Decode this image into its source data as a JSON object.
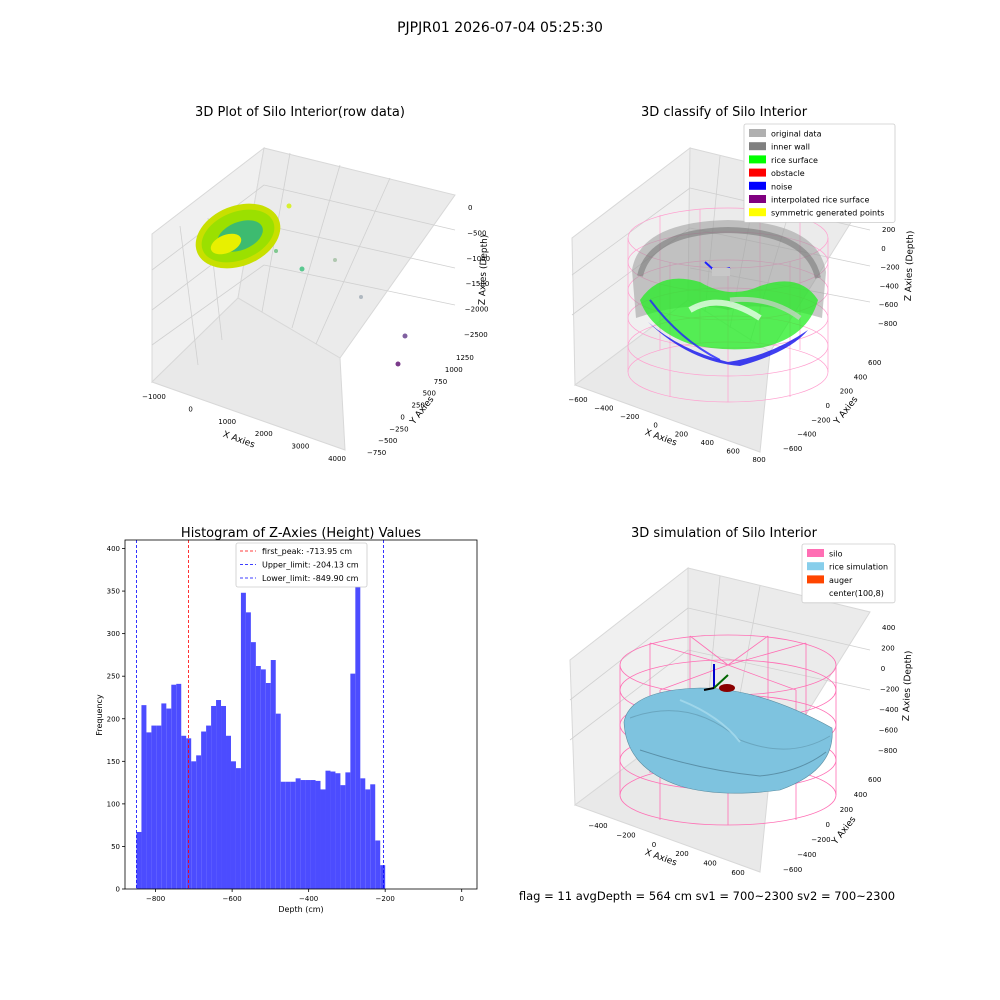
{
  "suptitle": "PJPJR01 2026-07-04 05:25:30",
  "footer_text": "flag = 11  avgDepth = 564 cm  sv1 = 700~2300  sv2 = 700~2300",
  "colors": {
    "hist_fill": "#4c4cff",
    "first_peak_line": "#ff0000",
    "limit_lines": "#0000ff",
    "silo_pink": "#ff6eb4",
    "rice_blue": "#87ceeb",
    "rice_green": "#00ff00",
    "inner_wall_gray": "#808080",
    "noise_blue": "#0000ff"
  },
  "chart_data": [
    {
      "type": "scatter3d",
      "title": "3D Plot of Silo Interior(row data)",
      "xlabel": "X Axies",
      "ylabel": "Y Axies",
      "zlabel": "Z Axies (Depth)",
      "x_ticks": [
        "−1000",
        "0",
        "1000",
        "2000",
        "3000",
        "4000"
      ],
      "y_ticks": [
        "1250",
        "1000",
        "750",
        "500",
        "250",
        "0",
        "−250",
        "−500",
        "−750"
      ],
      "z_ticks": [
        "0",
        "−500",
        "−1000",
        "−1500",
        "−2000",
        "−2500"
      ]
    },
    {
      "type": "scatter3d",
      "title": "3D classify of Silo Interior",
      "xlabel": "X Axies",
      "ylabel": "Y Axies",
      "zlabel": "Z Axies (Depth)",
      "x_ticks": [
        "−600",
        "−400",
        "−200",
        "0",
        "200",
        "400",
        "600",
        "800"
      ],
      "y_ticks": [
        "600",
        "400",
        "200",
        "0",
        "−200",
        "−400",
        "−600"
      ],
      "z_ticks": [
        "200",
        "0",
        "−200",
        "−400",
        "−600",
        "−800"
      ],
      "legend_position": "upper-right",
      "legend": [
        {
          "label": "original data",
          "color": "#b0b0b0"
        },
        {
          "label": "inner wall",
          "color": "#808080"
        },
        {
          "label": "rice surface",
          "color": "#00ff00"
        },
        {
          "label": "obstacle",
          "color": "#ff0000"
        },
        {
          "label": "noise",
          "color": "#0000ff"
        },
        {
          "label": "interpolated rice surface",
          "color": "#800080"
        },
        {
          "label": "symmetric generated points",
          "color": "#ffff00"
        }
      ]
    },
    {
      "type": "bar",
      "title": "Histogram of Z-Axies (Height) Values",
      "xlabel": "Depth (cm)",
      "ylabel": "Frequency",
      "xlim": [
        -880,
        40
      ],
      "ylim": [
        0,
        410
      ],
      "bin_start": -850,
      "bin_width": 13,
      "x_ticks": [
        -800,
        -600,
        -400,
        -200,
        0
      ],
      "x_tick_labels": [
        "−800",
        "−600",
        "−400",
        "−200",
        "0"
      ],
      "y_ticks": [
        0,
        50,
        100,
        150,
        200,
        250,
        300,
        350,
        400
      ],
      "y_tick_labels": [
        "0",
        "50",
        "100",
        "150",
        "200",
        "250",
        "300",
        "350",
        "400"
      ],
      "values": [
        67,
        216,
        184,
        192,
        192,
        218,
        212,
        240,
        241,
        180,
        177,
        150,
        157,
        185,
        192,
        215,
        222,
        215,
        180,
        150,
        142,
        348,
        325,
        290,
        262,
        258,
        242,
        269,
        206,
        126,
        126,
        126,
        130,
        128,
        128,
        128,
        127,
        117,
        139,
        138,
        136,
        122,
        137,
        253,
        388,
        130,
        117,
        123,
        57,
        28
      ],
      "vlines": [
        {
          "label": "first_peak: -713.95 cm",
          "x": -713.95,
          "color": "#ff0000"
        },
        {
          "label": "Upper_limit: -204.13 cm",
          "x": -204.13,
          "color": "#0000ff"
        },
        {
          "label": "Lower_limit: -849.90 cm",
          "x": -849.9,
          "color": "#0000ff"
        }
      ],
      "legend_position": "upper-center"
    },
    {
      "type": "surface3d",
      "title": "3D simulation of Silo Interior",
      "xlabel": "X Axies",
      "ylabel": "Y Axies",
      "zlabel": "Z Axies (Depth)",
      "x_ticks": [
        "−400",
        "−200",
        "0",
        "200",
        "400",
        "600"
      ],
      "y_ticks": [
        "600",
        "400",
        "200",
        "0",
        "−200",
        "−400",
        "−600"
      ],
      "z_ticks": [
        "400",
        "200",
        "0",
        "−200",
        "−400",
        "−600",
        "−800"
      ],
      "legend_position": "upper-right",
      "legend": [
        {
          "label": "silo",
          "color": "#ff6eb4"
        },
        {
          "label": "rice simulation",
          "color": "#87ceeb"
        },
        {
          "label": "auger",
          "color": "#ff4500"
        },
        {
          "label": "center(100,8)",
          "color": "#ffffff"
        }
      ]
    }
  ]
}
